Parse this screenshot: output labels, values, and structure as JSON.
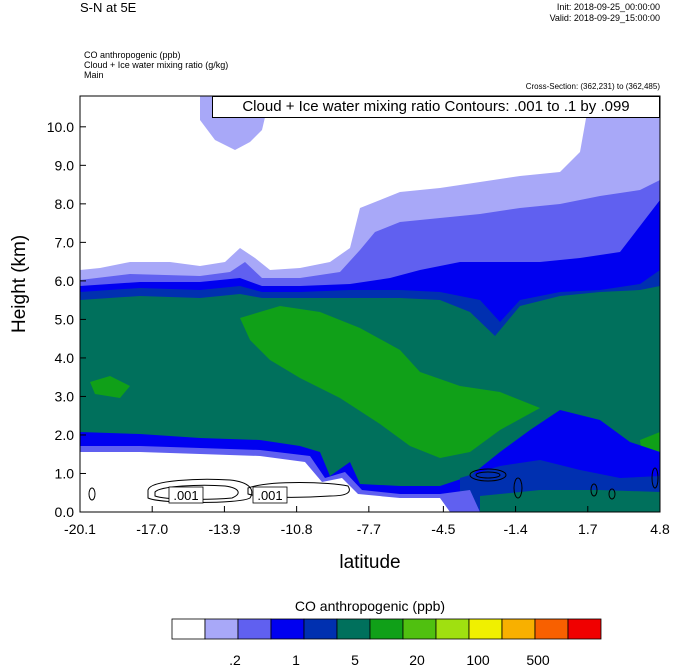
{
  "header": {
    "title": "S-N at 5E",
    "init": "Init: 2018-09-25_00:00:00",
    "valid": "Valid: 2018-09-29_15:00:00",
    "fields": [
      "CO anthropogenic   (ppb)",
      "Cloud + Ice water mixing ratio   (g/kg)",
      "Main"
    ],
    "cross_section": "Cross-Section: (362,231) to (362,485)"
  },
  "chart_data": {
    "type": "heatmap",
    "contour_label": "Cloud + Ice water mixing ratio Contours: .001 to .1 by .099",
    "contour_values": [
      ".001",
      ".001"
    ],
    "xlabel": "latitude",
    "ylabel": "Height (km)",
    "xlim": [
      -20.1,
      4.8
    ],
    "ylim": [
      0,
      10.8
    ],
    "x_ticks": [
      "-20.1",
      "-17.0",
      "-13.9",
      "-10.8",
      "-7.7",
      "-4.5",
      "-1.4",
      "1.7",
      "4.8"
    ],
    "y_ticks": [
      "0.0",
      "1.0",
      "2.0",
      "3.0",
      "4.0",
      "5.0",
      "6.0",
      "7.0",
      "8.0",
      "9.0",
      "10.0"
    ],
    "colorbar": {
      "title": "CO anthropogenic  (ppb)",
      "colors": [
        "#ffffff",
        "#a8a8f8",
        "#6060f0",
        "#0000f0",
        "#0030b0",
        "#00705c",
        "#10a018",
        "#50c010",
        "#a0e010",
        "#f0f000",
        "#f8b000",
        "#f86000",
        "#f00000"
      ],
      "labels": [
        ".2",
        "1",
        "5",
        "20",
        "100",
        "500"
      ]
    }
  }
}
